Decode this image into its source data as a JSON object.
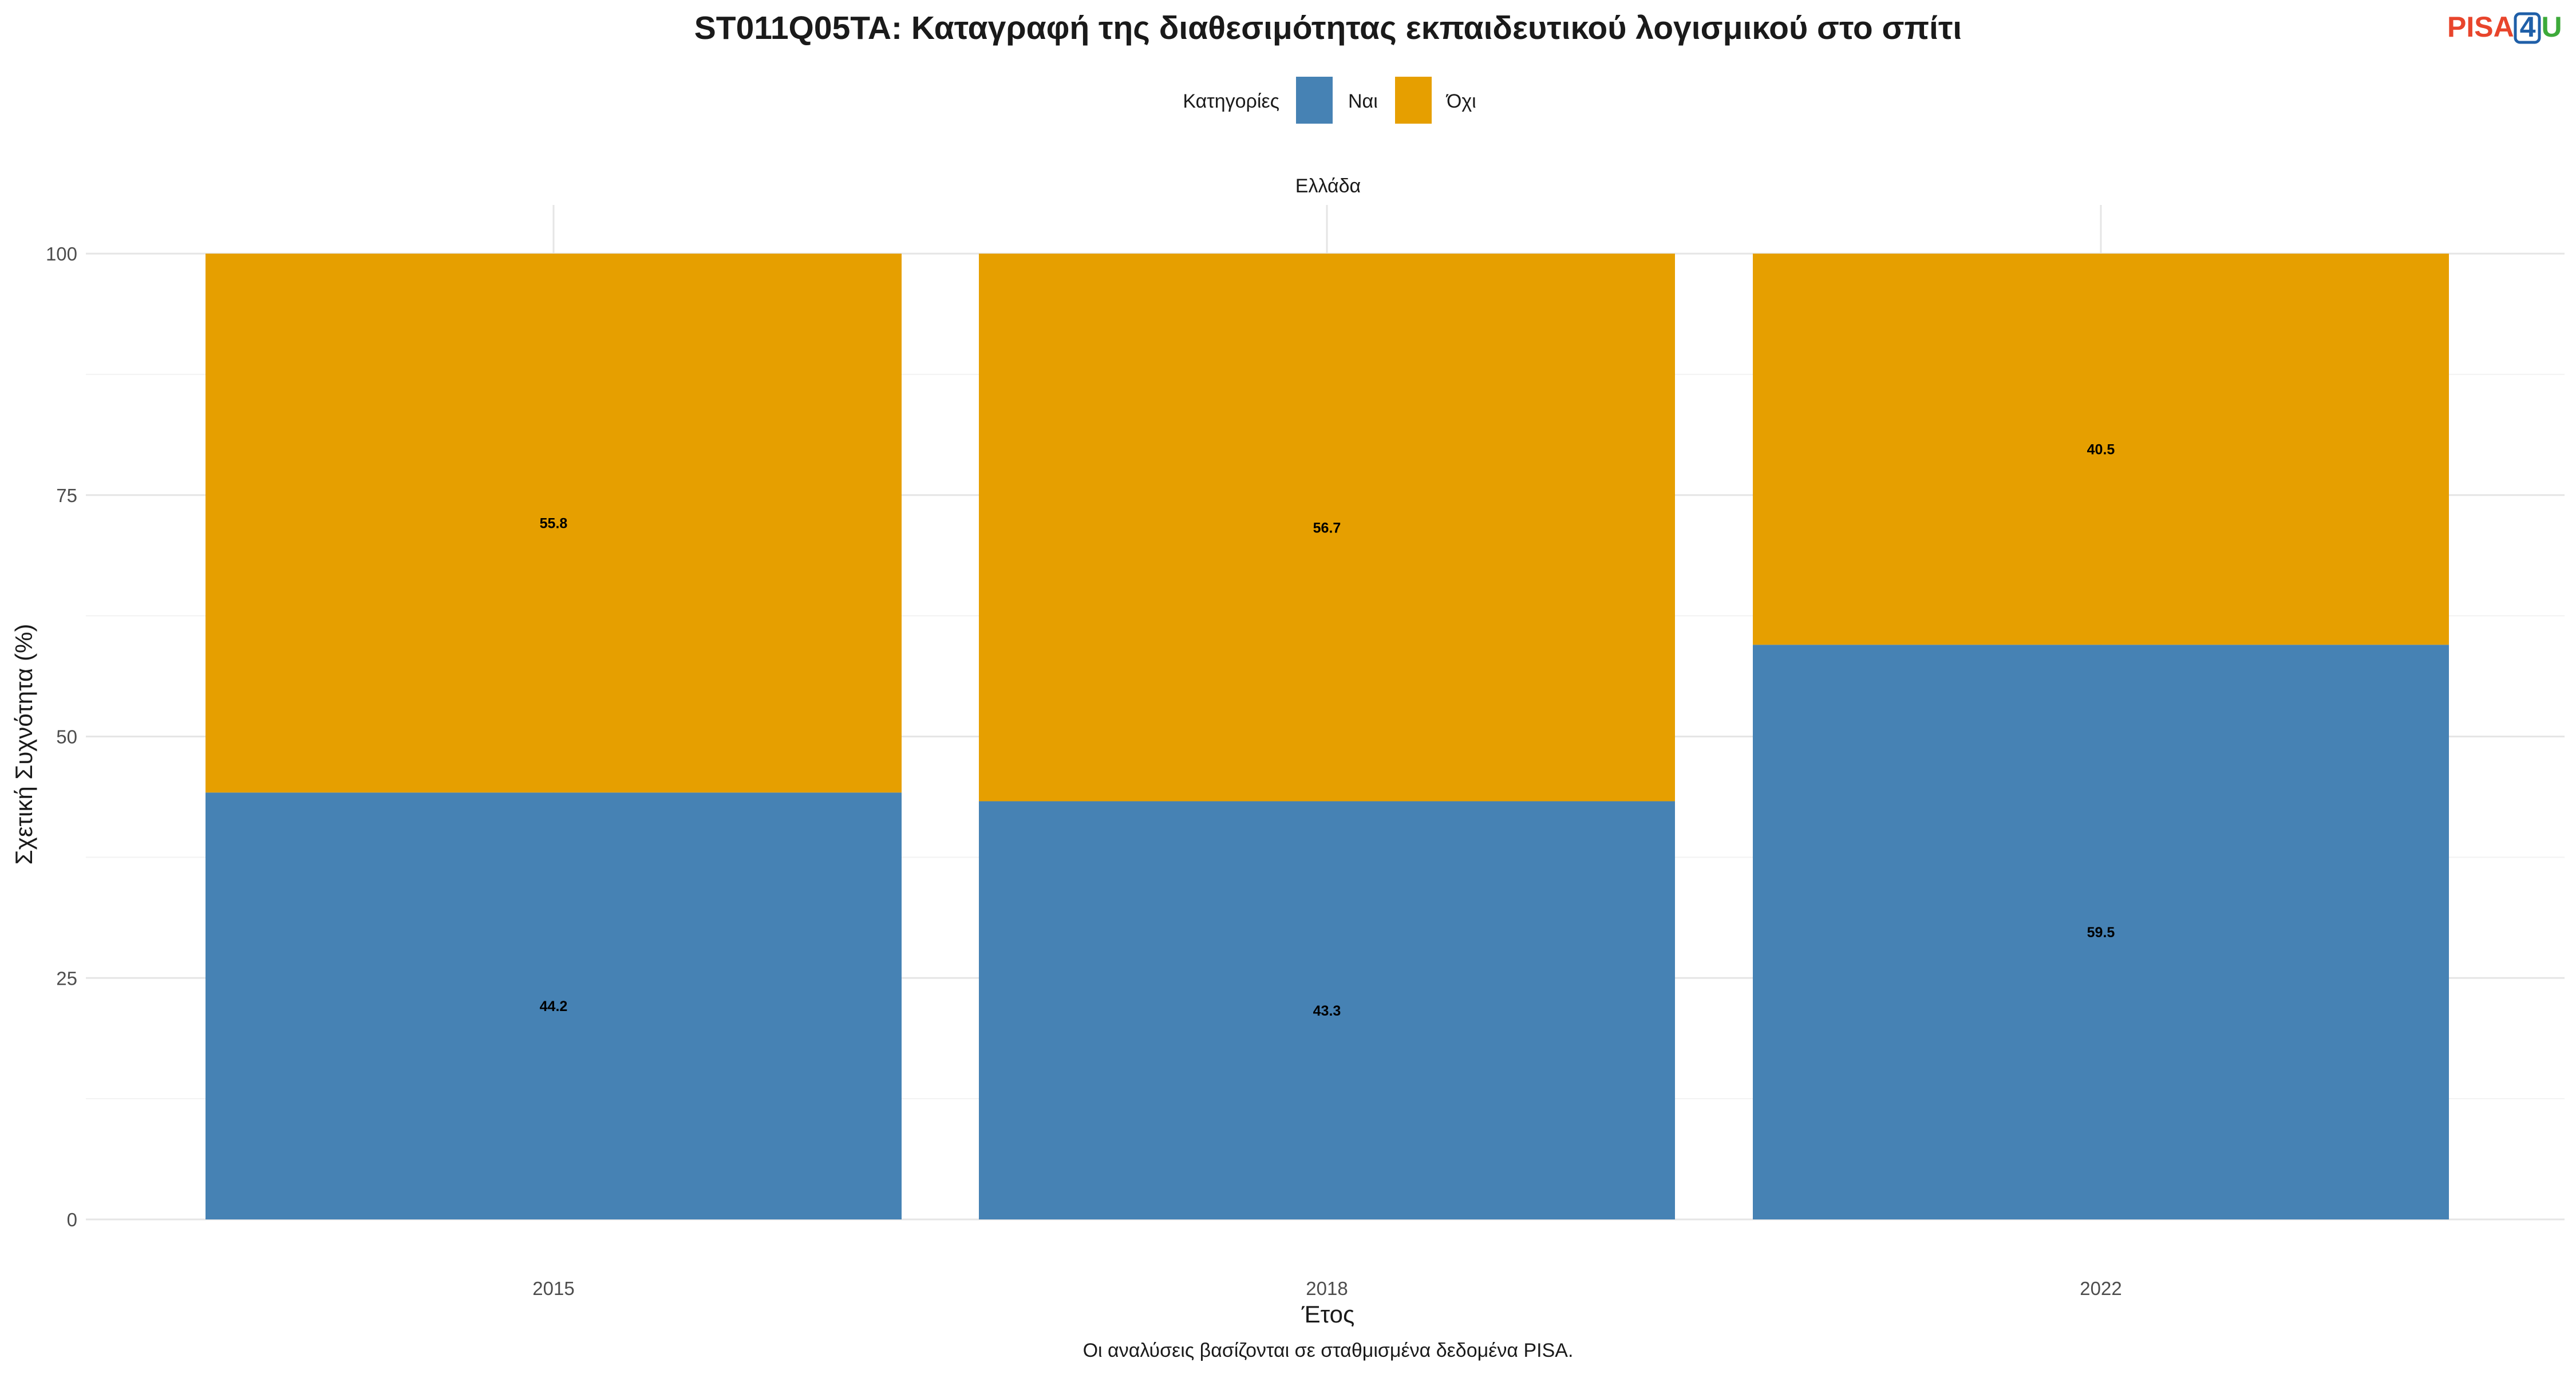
{
  "chart_data": {
    "type": "bar",
    "stacked": true,
    "title": "ST011Q05TA: Καταγραφή της διαθεσιμότητας εκπαιδευτικού λογισμικού στο σπίτι",
    "legend": {
      "title": "Κατηγορίες",
      "position": "top"
    },
    "facet": "Ελλάδα",
    "xlabel": "Έτος",
    "ylabel": "Σχετική Συχνότητα (%)",
    "ylim": [
      0,
      100
    ],
    "yticks": [
      0,
      25,
      50,
      75,
      100
    ],
    "grid": true,
    "categories": [
      "2015",
      "2018",
      "2022"
    ],
    "series": [
      {
        "name": "Ναι",
        "color": "#4682B4",
        "values": [
          44.2,
          43.3,
          59.5
        ],
        "labels": [
          "44.2",
          "43.3",
          "59.5"
        ]
      },
      {
        "name": "Όχι",
        "color": "#E69F00",
        "values": [
          55.8,
          56.7,
          40.5
        ],
        "labels": [
          "55.8",
          "56.7",
          "40.5"
        ]
      }
    ],
    "caption": "Οι αναλύσεις βασίζονται σε σταθμισμένα δεδομένα PISA."
  },
  "logo": {
    "part1": "PISA",
    "part2": "4",
    "part3": "U",
    "color1": "#E8452C",
    "color2": "#1F5FA8",
    "color3": "#3DAA3A"
  }
}
